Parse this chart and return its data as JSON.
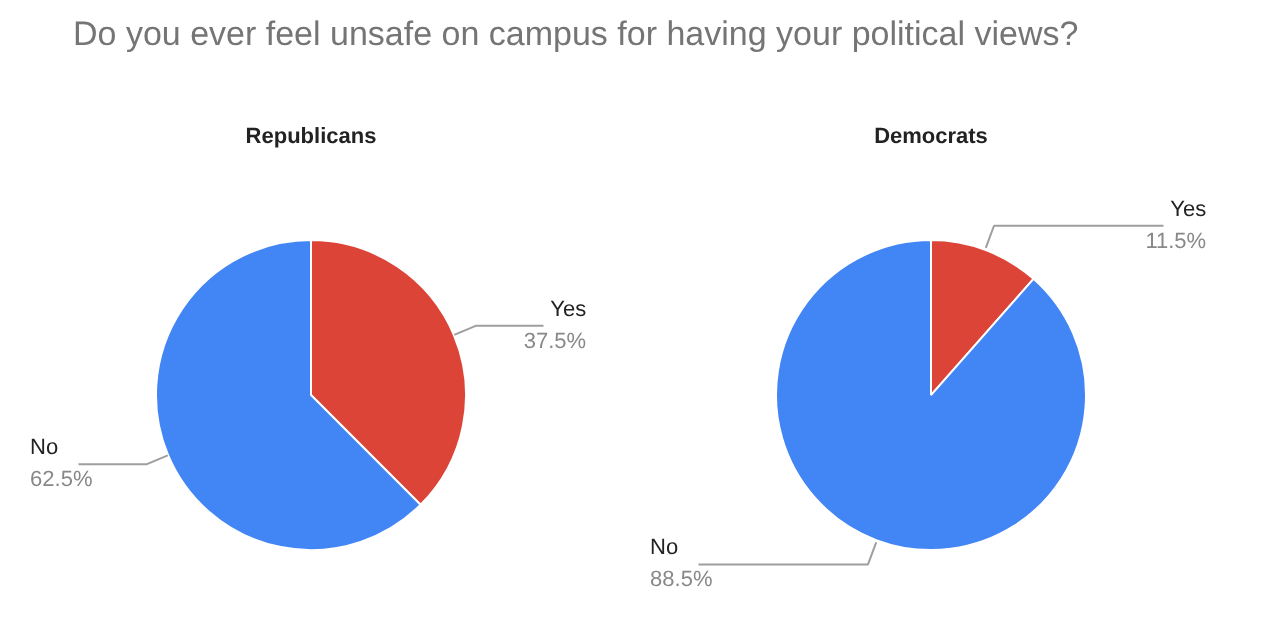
{
  "chart_data": [
    {
      "type": "other",
      "title": "Do you ever feel unsafe on campus for having your political views?"
    },
    {
      "type": "pie",
      "title": "Republicans",
      "categories": [
        "Yes",
        "No"
      ],
      "values": [
        37.5,
        62.5
      ],
      "colors": [
        "#db4437",
        "#4285f4"
      ],
      "value_labels": [
        "37.5%",
        "62.5%"
      ],
      "legend": false
    },
    {
      "type": "pie",
      "title": "Democrats",
      "categories": [
        "Yes",
        "No"
      ],
      "values": [
        11.5,
        88.5
      ],
      "colors": [
        "#db4437",
        "#4285f4"
      ],
      "value_labels": [
        "11.5%",
        "88.5%"
      ],
      "legend": false
    }
  ]
}
